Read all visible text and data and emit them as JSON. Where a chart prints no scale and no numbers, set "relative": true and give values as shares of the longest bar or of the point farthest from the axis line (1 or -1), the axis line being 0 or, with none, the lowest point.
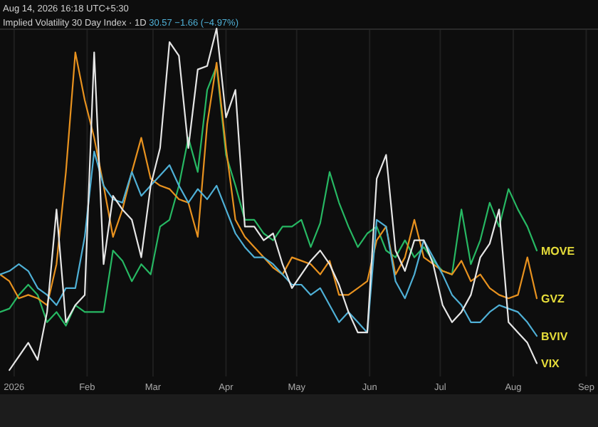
{
  "chart_data": {
    "type": "line",
    "relative": true,
    "title": "Implied Volatility 30 Day Index · 1D",
    "subtitle": "Aug 14, 2026 16:18 UTC+5:30",
    "annotations": [
      "30.57 −1.66 (−4.97%)"
    ],
    "x": [
      "2025-12-26",
      "2025-12-30",
      "2026-01-03",
      "2026-01-07",
      "2026-01-11",
      "2026-01-15",
      "2026-01-19",
      "2026-01-23",
      "2026-01-27",
      "2026-01-31",
      "2026-02-04",
      "2026-02-08",
      "2026-02-12",
      "2026-02-16",
      "2026-02-20",
      "2026-02-24",
      "2026-02-28",
      "2026-03-04",
      "2026-03-08",
      "2026-03-12",
      "2026-03-16",
      "2026-03-20",
      "2026-03-24",
      "2026-03-28",
      "2026-04-01",
      "2026-04-05",
      "2026-04-09",
      "2026-04-13",
      "2026-04-17",
      "2026-04-21",
      "2026-04-25",
      "2026-04-29",
      "2026-05-03",
      "2026-05-07",
      "2026-05-11",
      "2026-05-15",
      "2026-05-19",
      "2026-05-23",
      "2026-05-27",
      "2026-05-31",
      "2026-06-04",
      "2026-06-08",
      "2026-06-12",
      "2026-06-16",
      "2026-06-20",
      "2026-06-24",
      "2026-06-28",
      "2026-07-02",
      "2026-07-06",
      "2026-07-10",
      "2026-07-14",
      "2026-07-18",
      "2026-07-22",
      "2026-07-26",
      "2026-07-30",
      "2026-08-03",
      "2026-08-07",
      "2026-08-11"
    ],
    "xlim": [
      "2025-12-26",
      "2026-09-06"
    ],
    "xticks": [
      {
        "value": "2026-01-01",
        "label": "2026"
      },
      {
        "value": "2026-02-01",
        "label": "Feb"
      },
      {
        "value": "2026-03-01",
        "label": "Mar"
      },
      {
        "value": "2026-04-01",
        "label": "Apr"
      },
      {
        "value": "2026-05-01",
        "label": "May"
      },
      {
        "value": "2026-06-01",
        "label": "Jun"
      },
      {
        "value": "2026-07-01",
        "label": "Jul"
      },
      {
        "value": "2026-08-01",
        "label": "Aug"
      },
      {
        "value": "2026-09-01",
        "label": "Sep"
      }
    ],
    "grid": "x",
    "legend": false,
    "marker": "none",
    "line_style": "solid",
    "series": [
      {
        "name": "MOVE",
        "color": "#27b863",
        "values": [
          0.17,
          0.18,
          0.22,
          0.25,
          0.22,
          0.14,
          0.17,
          0.13,
          0.19,
          0.17,
          0.17,
          0.17,
          0.35,
          0.32,
          0.26,
          0.31,
          0.28,
          0.42,
          0.44,
          0.54,
          0.68,
          0.58,
          0.82,
          0.89,
          0.63,
          0.54,
          0.44,
          0.44,
          0.4,
          0.38,
          0.42,
          0.42,
          0.44,
          0.36,
          0.43,
          0.58,
          0.49,
          0.42,
          0.36,
          0.4,
          0.42,
          0.35,
          0.33,
          0.38,
          0.33,
          0.36,
          0.32,
          0.29,
          0.28,
          0.47,
          0.31,
          0.38,
          0.49,
          0.42,
          0.53,
          0.47,
          0.42,
          0.35
        ]
      },
      {
        "name": "GVZ",
        "color": "#e8921f",
        "values": [
          0.28,
          0.26,
          0.21,
          0.22,
          0.21,
          0.19,
          0.31,
          0.58,
          0.93,
          0.79,
          0.68,
          0.54,
          0.39,
          0.47,
          0.58,
          0.68,
          0.56,
          0.54,
          0.53,
          0.5,
          0.49,
          0.39,
          0.72,
          0.9,
          0.65,
          0.44,
          0.39,
          0.36,
          0.33,
          0.3,
          0.28,
          0.33,
          0.32,
          0.31,
          0.28,
          0.32,
          0.22,
          0.22,
          0.24,
          0.26,
          0.38,
          0.42,
          0.28,
          0.33,
          0.44,
          0.33,
          0.31,
          0.29,
          0.28,
          0.32,
          0.26,
          0.28,
          0.24,
          0.22,
          0.21,
          0.22,
          0.33,
          0.21
        ]
      },
      {
        "name": "BVIV",
        "color": "#4fb0d6",
        "values": [
          0.28,
          0.29,
          0.31,
          0.29,
          0.24,
          0.22,
          0.19,
          0.24,
          0.24,
          0.39,
          0.64,
          0.54,
          0.5,
          0.49,
          0.58,
          0.51,
          0.54,
          0.57,
          0.6,
          0.54,
          0.49,
          0.53,
          0.5,
          0.54,
          0.47,
          0.4,
          0.36,
          0.33,
          0.33,
          0.31,
          0.28,
          0.25,
          0.25,
          0.22,
          0.24,
          0.19,
          0.14,
          0.17,
          0.14,
          0.11,
          0.44,
          0.42,
          0.26,
          0.21,
          0.28,
          0.38,
          0.33,
          0.28,
          0.22,
          0.19,
          0.14,
          0.14,
          0.17,
          0.19,
          0.18,
          0.17,
          0.14,
          0.1
        ]
      },
      {
        "name": "VIX",
        "color": "#e6e6e6",
        "values": [
          null,
          0,
          0.04,
          0.08,
          0.03,
          0.17,
          0.47,
          0.14,
          0.19,
          0.22,
          0.93,
          0.31,
          0.51,
          0.47,
          0.44,
          0.33,
          0.54,
          0.65,
          0.96,
          0.92,
          0.65,
          0.88,
          0.89,
          1,
          0.74,
          0.82,
          0.42,
          0.42,
          0.38,
          0.4,
          0.31,
          0.24,
          0.28,
          0.32,
          0.35,
          0.31,
          0.25,
          0.17,
          0.11,
          0.11,
          0.56,
          0.63,
          0.35,
          0.29,
          0.38,
          0.38,
          0.31,
          0.19,
          0.14,
          0.17,
          0.22,
          0.33,
          0.37,
          0.47,
          0.14,
          0.11,
          0.08,
          0.02
        ]
      }
    ]
  }
}
